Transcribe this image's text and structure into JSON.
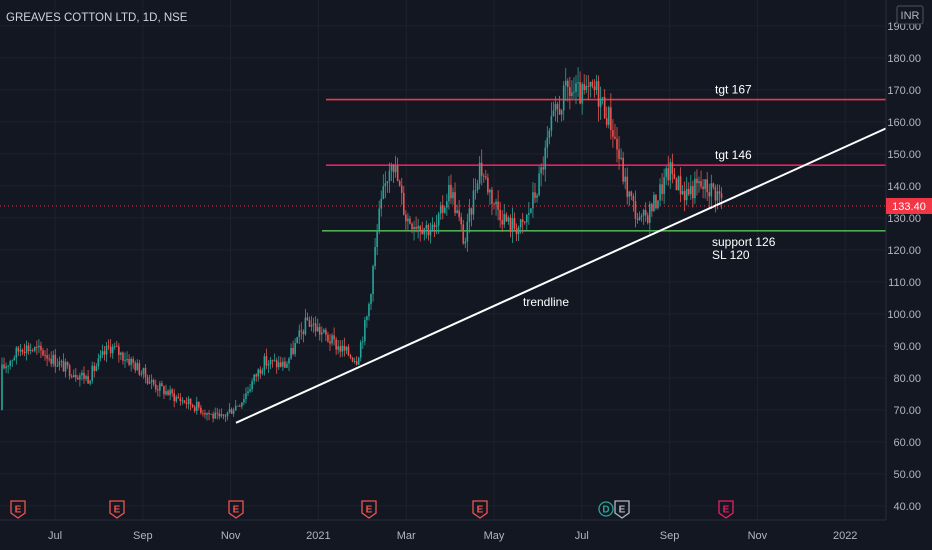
{
  "title": "GREAVES COTTON LTD, 1D, NSE",
  "currency": "INR",
  "colors": {
    "background": "#131722",
    "up": "#26a69a",
    "down": "#ef5350",
    "target167": "#f23645",
    "target146": "#e91e63",
    "support": "#4caf50",
    "trendline": "#ffffff",
    "price_tag": "#f23645"
  },
  "chart_data": {
    "type": "candlestick",
    "ylim": [
      35,
      195
    ],
    "y_ticks": [
      "40.00",
      "50.00",
      "60.00",
      "70.00",
      "80.00",
      "90.00",
      "100.00",
      "110.00",
      "120.00",
      "130.00",
      "140.00",
      "150.00",
      "160.00",
      "170.00",
      "180.00",
      "190.00"
    ],
    "x_ticks": [
      "Jul",
      "Sep",
      "Nov",
      "2021",
      "Mar",
      "May",
      "Jul",
      "Sep",
      "Nov",
      "2022"
    ],
    "last_price": "133.40",
    "levels": [
      {
        "label": "tgt 167",
        "value": 167
      },
      {
        "label": "tgt 146",
        "value": 146.5
      },
      {
        "label": "support 126",
        "sublabel": "SL 120",
        "value": 126
      }
    ],
    "trendline": {
      "label": "trendline",
      "from": {
        "date": "Nov 2020",
        "value": 66
      },
      "to": {
        "date": "Dec 2021",
        "value": 158
      }
    },
    "price_anchors": [
      [
        "May 2020",
        70
      ],
      [
        "Jun 2020",
        82
      ],
      [
        "Jun 2020",
        90
      ],
      [
        "Jul 2020",
        88
      ],
      [
        "Jul 2020",
        83
      ],
      [
        "Aug 2020",
        80
      ],
      [
        "Aug 2020",
        90
      ],
      [
        "Sep 2020",
        85
      ],
      [
        "Sep 2020",
        78
      ],
      [
        "Oct 2020",
        74
      ],
      [
        "Oct 2020",
        71
      ],
      [
        "Nov 2020",
        67
      ],
      [
        "Nov 2020",
        73
      ],
      [
        "Dec 2020",
        85
      ],
      [
        "Dec 2020",
        84
      ],
      [
        "Jan 2021",
        98
      ],
      [
        "Jan 2021",
        92
      ],
      [
        "Feb 2021",
        88
      ],
      [
        "Feb 2021",
        86
      ],
      [
        "Feb 2021",
        100
      ],
      [
        "Feb 2021",
        130
      ],
      [
        "Mar 2021",
        150
      ],
      [
        "Mar 2021",
        130
      ],
      [
        "Mar 2021",
        128
      ],
      [
        "Apr 2021",
        126
      ],
      [
        "Apr 2021",
        140
      ],
      [
        "Apr 2021",
        122
      ],
      [
        "May 2021",
        147
      ],
      [
        "May 2021",
        135
      ],
      [
        "May 2021",
        128
      ],
      [
        "Jun 2021",
        127
      ],
      [
        "Jun 2021",
        140
      ],
      [
        "Jun 2021",
        160
      ],
      [
        "Jul 2021",
        170
      ],
      [
        "Jul 2021",
        168
      ],
      [
        "Jul 2021",
        170
      ],
      [
        "Aug 2021",
        160
      ],
      [
        "Aug 2021",
        140
      ],
      [
        "Aug 2021",
        128
      ],
      [
        "Sep 2021",
        135
      ],
      [
        "Sep 2021",
        145
      ],
      [
        "Sep 2021",
        138
      ],
      [
        "Oct 2021",
        140
      ],
      [
        "Oct 2021",
        139
      ],
      [
        "Oct 2021",
        134
      ]
    ]
  },
  "events": [
    {
      "label": "E",
      "color": "#ef5350"
    },
    {
      "label": "E",
      "color": "#ef5350"
    },
    {
      "label": "E",
      "color": "#ef5350"
    },
    {
      "label": "E",
      "color": "#ef5350"
    },
    {
      "label": "E",
      "color": "#ef5350"
    },
    {
      "label": "D",
      "color": "#26a69a"
    },
    {
      "label": "E",
      "color": "#b2b5be"
    },
    {
      "label": "E",
      "color": "#e91e63"
    }
  ]
}
